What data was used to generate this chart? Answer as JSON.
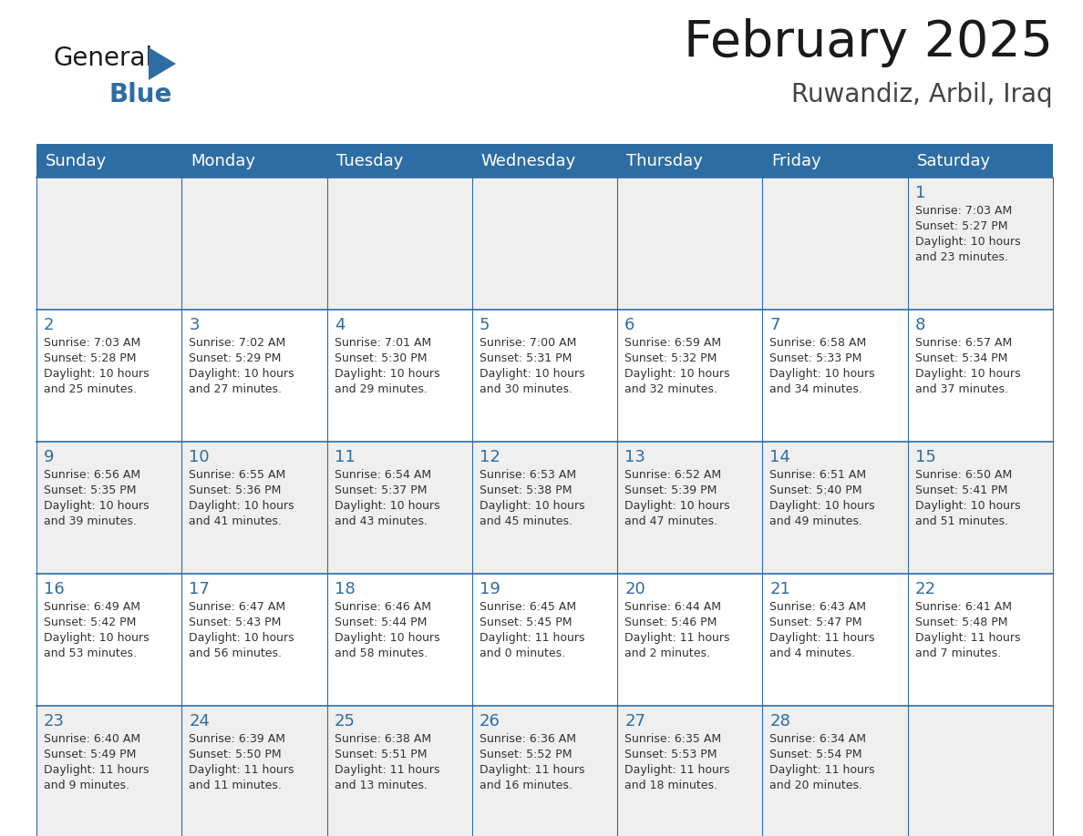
{
  "title": "February 2025",
  "subtitle": "Ruwandiz, Arbil, Iraq",
  "header_bg": "#2E6DA4",
  "header_text_color": "#FFFFFF",
  "cell_bg_odd": "#EFEFEF",
  "cell_bg_even": "#FFFFFF",
  "grid_line_color": "#2E6DA4",
  "day_number_color": "#2E6DA4",
  "text_color": "#333333",
  "day_headers": [
    "Sunday",
    "Monday",
    "Tuesday",
    "Wednesday",
    "Thursday",
    "Friday",
    "Saturday"
  ],
  "days": [
    {
      "day": 1,
      "col": 6,
      "row": 0,
      "sunrise": "7:03 AM",
      "sunset": "5:27 PM",
      "daylight_h": "10 hours",
      "daylight_m": "and 23 minutes."
    },
    {
      "day": 2,
      "col": 0,
      "row": 1,
      "sunrise": "7:03 AM",
      "sunset": "5:28 PM",
      "daylight_h": "10 hours",
      "daylight_m": "and 25 minutes."
    },
    {
      "day": 3,
      "col": 1,
      "row": 1,
      "sunrise": "7:02 AM",
      "sunset": "5:29 PM",
      "daylight_h": "10 hours",
      "daylight_m": "and 27 minutes."
    },
    {
      "day": 4,
      "col": 2,
      "row": 1,
      "sunrise": "7:01 AM",
      "sunset": "5:30 PM",
      "daylight_h": "10 hours",
      "daylight_m": "and 29 minutes."
    },
    {
      "day": 5,
      "col": 3,
      "row": 1,
      "sunrise": "7:00 AM",
      "sunset": "5:31 PM",
      "daylight_h": "10 hours",
      "daylight_m": "and 30 minutes."
    },
    {
      "day": 6,
      "col": 4,
      "row": 1,
      "sunrise": "6:59 AM",
      "sunset": "5:32 PM",
      "daylight_h": "10 hours",
      "daylight_m": "and 32 minutes."
    },
    {
      "day": 7,
      "col": 5,
      "row": 1,
      "sunrise": "6:58 AM",
      "sunset": "5:33 PM",
      "daylight_h": "10 hours",
      "daylight_m": "and 34 minutes."
    },
    {
      "day": 8,
      "col": 6,
      "row": 1,
      "sunrise": "6:57 AM",
      "sunset": "5:34 PM",
      "daylight_h": "10 hours",
      "daylight_m": "and 37 minutes."
    },
    {
      "day": 9,
      "col": 0,
      "row": 2,
      "sunrise": "6:56 AM",
      "sunset": "5:35 PM",
      "daylight_h": "10 hours",
      "daylight_m": "and 39 minutes."
    },
    {
      "day": 10,
      "col": 1,
      "row": 2,
      "sunrise": "6:55 AM",
      "sunset": "5:36 PM",
      "daylight_h": "10 hours",
      "daylight_m": "and 41 minutes."
    },
    {
      "day": 11,
      "col": 2,
      "row": 2,
      "sunrise": "6:54 AM",
      "sunset": "5:37 PM",
      "daylight_h": "10 hours",
      "daylight_m": "and 43 minutes."
    },
    {
      "day": 12,
      "col": 3,
      "row": 2,
      "sunrise": "6:53 AM",
      "sunset": "5:38 PM",
      "daylight_h": "10 hours",
      "daylight_m": "and 45 minutes."
    },
    {
      "day": 13,
      "col": 4,
      "row": 2,
      "sunrise": "6:52 AM",
      "sunset": "5:39 PM",
      "daylight_h": "10 hours",
      "daylight_m": "and 47 minutes."
    },
    {
      "day": 14,
      "col": 5,
      "row": 2,
      "sunrise": "6:51 AM",
      "sunset": "5:40 PM",
      "daylight_h": "10 hours",
      "daylight_m": "and 49 minutes."
    },
    {
      "day": 15,
      "col": 6,
      "row": 2,
      "sunrise": "6:50 AM",
      "sunset": "5:41 PM",
      "daylight_h": "10 hours",
      "daylight_m": "and 51 minutes."
    },
    {
      "day": 16,
      "col": 0,
      "row": 3,
      "sunrise": "6:49 AM",
      "sunset": "5:42 PM",
      "daylight_h": "10 hours",
      "daylight_m": "and 53 minutes."
    },
    {
      "day": 17,
      "col": 1,
      "row": 3,
      "sunrise": "6:47 AM",
      "sunset": "5:43 PM",
      "daylight_h": "10 hours",
      "daylight_m": "and 56 minutes."
    },
    {
      "day": 18,
      "col": 2,
      "row": 3,
      "sunrise": "6:46 AM",
      "sunset": "5:44 PM",
      "daylight_h": "10 hours",
      "daylight_m": "and 58 minutes."
    },
    {
      "day": 19,
      "col": 3,
      "row": 3,
      "sunrise": "6:45 AM",
      "sunset": "5:45 PM",
      "daylight_h": "11 hours",
      "daylight_m": "and 0 minutes."
    },
    {
      "day": 20,
      "col": 4,
      "row": 3,
      "sunrise": "6:44 AM",
      "sunset": "5:46 PM",
      "daylight_h": "11 hours",
      "daylight_m": "and 2 minutes."
    },
    {
      "day": 21,
      "col": 5,
      "row": 3,
      "sunrise": "6:43 AM",
      "sunset": "5:47 PM",
      "daylight_h": "11 hours",
      "daylight_m": "and 4 minutes."
    },
    {
      "day": 22,
      "col": 6,
      "row": 3,
      "sunrise": "6:41 AM",
      "sunset": "5:48 PM",
      "daylight_h": "11 hours",
      "daylight_m": "and 7 minutes."
    },
    {
      "day": 23,
      "col": 0,
      "row": 4,
      "sunrise": "6:40 AM",
      "sunset": "5:49 PM",
      "daylight_h": "11 hours",
      "daylight_m": "and 9 minutes."
    },
    {
      "day": 24,
      "col": 1,
      "row": 4,
      "sunrise": "6:39 AM",
      "sunset": "5:50 PM",
      "daylight_h": "11 hours",
      "daylight_m": "and 11 minutes."
    },
    {
      "day": 25,
      "col": 2,
      "row": 4,
      "sunrise": "6:38 AM",
      "sunset": "5:51 PM",
      "daylight_h": "11 hours",
      "daylight_m": "and 13 minutes."
    },
    {
      "day": 26,
      "col": 3,
      "row": 4,
      "sunrise": "6:36 AM",
      "sunset": "5:52 PM",
      "daylight_h": "11 hours",
      "daylight_m": "and 16 minutes."
    },
    {
      "day": 27,
      "col": 4,
      "row": 4,
      "sunrise": "6:35 AM",
      "sunset": "5:53 PM",
      "daylight_h": "11 hours",
      "daylight_m": "and 18 minutes."
    },
    {
      "day": 28,
      "col": 5,
      "row": 4,
      "sunrise": "6:34 AM",
      "sunset": "5:54 PM",
      "daylight_h": "11 hours",
      "daylight_m": "and 20 minutes."
    }
  ],
  "num_rows": 5
}
